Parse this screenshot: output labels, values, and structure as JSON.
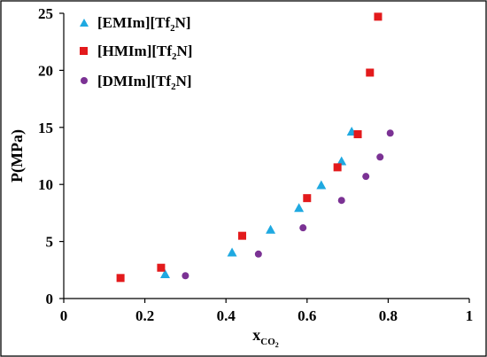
{
  "chart_data": {
    "type": "scatter",
    "xlabel_main": "x",
    "xlabel_sub": "CO",
    "xlabel_sub2": "2",
    "ylabel": "P(MPa)",
    "xlim": [
      0,
      1
    ],
    "ylim": [
      0,
      25
    ],
    "x_ticks": [
      0,
      0.2,
      0.4,
      0.6,
      0.8,
      1
    ],
    "x_tick_labels": [
      "0",
      "0.2",
      "0.4",
      "0.6",
      "0.8",
      "1"
    ],
    "y_ticks": [
      0,
      5,
      10,
      15,
      20,
      25
    ],
    "y_tick_labels": [
      "0",
      "5",
      "10",
      "15",
      "20",
      "25"
    ],
    "grid": false,
    "legend_position": "top-left",
    "series": [
      {
        "name_pre": "[EMIm][Tf",
        "name_sub": "2",
        "name_post": "N]",
        "marker": "triangle",
        "color": "#1fa9e1",
        "points": [
          [
            0.25,
            2.1
          ],
          [
            0.415,
            4.0
          ],
          [
            0.51,
            6.0
          ],
          [
            0.58,
            7.9
          ],
          [
            0.635,
            9.9
          ],
          [
            0.685,
            12.0
          ],
          [
            0.71,
            14.6
          ]
        ]
      },
      {
        "name_pre": "[HMIm][Tf",
        "name_sub": "2",
        "name_post": "N]",
        "marker": "square",
        "color": "#e31a1c",
        "points": [
          [
            0.14,
            1.8
          ],
          [
            0.24,
            2.7
          ],
          [
            0.44,
            5.5
          ],
          [
            0.6,
            8.8
          ],
          [
            0.675,
            11.5
          ],
          [
            0.725,
            14.4
          ],
          [
            0.755,
            19.8
          ],
          [
            0.775,
            24.7
          ]
        ]
      },
      {
        "name_pre": "[DMIm][Tf",
        "name_sub": "2",
        "name_post": "N]",
        "marker": "circle",
        "color": "#7b3294",
        "points": [
          [
            0.3,
            2.0
          ],
          [
            0.48,
            3.9
          ],
          [
            0.59,
            6.2
          ],
          [
            0.685,
            8.6
          ],
          [
            0.745,
            10.7
          ],
          [
            0.78,
            12.4
          ],
          [
            0.805,
            14.5
          ]
        ]
      }
    ]
  }
}
